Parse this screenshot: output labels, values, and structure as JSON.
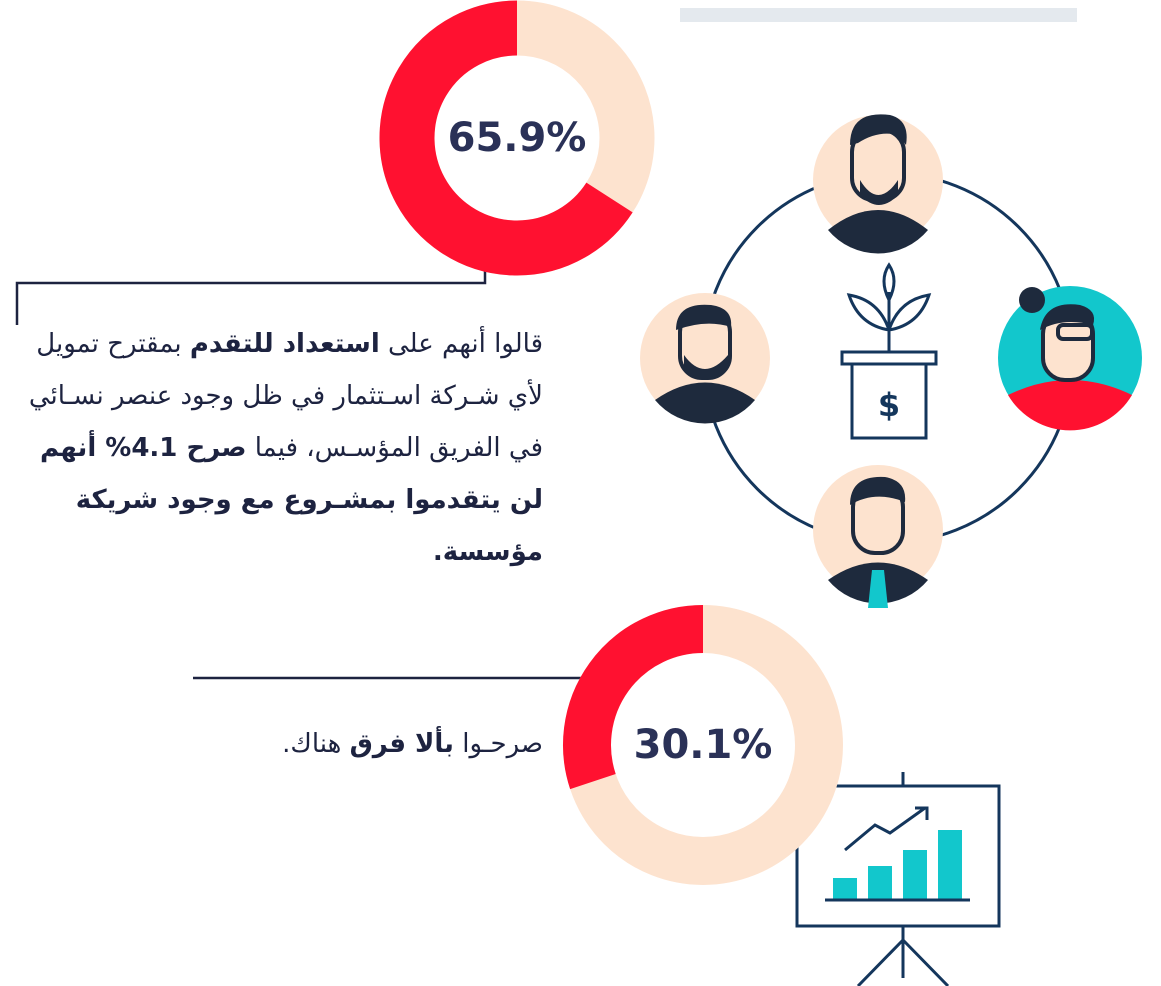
{
  "chart_data": [
    {
      "type": "donut",
      "values": [
        65.9
      ],
      "value_labels": [
        "65.9%"
      ],
      "color": "#ff1130",
      "track_color": "#fde3cf"
    },
    {
      "type": "donut",
      "values": [
        30.1
      ],
      "value_labels": [
        "30.1%"
      ],
      "color": "#ff1130",
      "track_color": "#fde3cf"
    }
  ],
  "texts": {
    "first": [
      "قالوا أنهم على ",
      "استعداد للتقدم",
      " بمقترح تمويل لأي شـركة اسـتثمار في ظل وجود عنصر نسـائي في الفريق المؤسـس، فيما ",
      "صرح 4.1% أنهم لن يتقدموا بمشـروع مع وجود شريكة مؤسسة."
    ],
    "second": [
      "صرحـوا ",
      "بألا فرق",
      " هناك."
    ]
  }
}
